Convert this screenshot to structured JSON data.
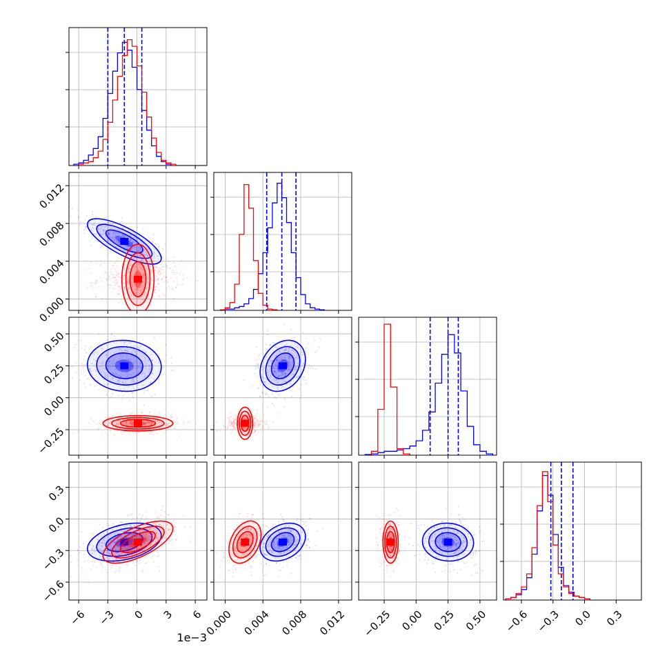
{
  "colors": {
    "blue": "#0000ff",
    "red": "#ff0000",
    "grid": "#b0b0b0",
    "axes": "#000000"
  },
  "figure": {
    "offset_text": "1e−3"
  },
  "chart_data": {
    "type": "corner",
    "grid": true,
    "n_params": 4,
    "params": [
      {
        "ticks": [
          -6,
          -3,
          0,
          3,
          6
        ],
        "tick_labels": [
          "−6",
          "−3",
          "0",
          "3",
          "6"
        ],
        "range": [
          -7.0,
          7.2
        ]
      },
      {
        "ticks": [
          0.0,
          0.004,
          0.008,
          0.012
        ],
        "tick_labels": [
          "0.000",
          "0.004",
          "0.008",
          "0.012"
        ],
        "range": [
          -0.0012,
          0.0134
        ]
      },
      {
        "ticks": [
          -0.25,
          0.0,
          0.25,
          0.5
        ],
        "tick_labels": [
          "−0.25",
          "0.00",
          "0.25",
          "0.50"
        ],
        "range": [
          -0.45,
          0.63
        ]
      },
      {
        "ticks": [
          -0.6,
          -0.3,
          0.0,
          0.3
        ],
        "tick_labels": [
          "−0.6",
          "−0.3",
          "0.0",
          "0.3"
        ],
        "range": [
          -0.77,
          0.54
        ]
      }
    ],
    "series": [
      {
        "color": "#0000ff",
        "hist": [
          {
            "start": -6.5,
            "width": 0.5,
            "counts": [
              0.01,
              0.02,
              0.04,
              0.08,
              0.13,
              0.22,
              0.36,
              0.55,
              0.72,
              0.86,
              0.94,
              0.88,
              0.75,
              0.58,
              0.42,
              0.27,
              0.15,
              0.07,
              0.03,
              0.01
            ]
          },
          {
            "start": 0.0,
            "width": 0.0005,
            "counts": [
              0.01,
              0.01,
              0.02,
              0.03,
              0.05,
              0.09,
              0.16,
              0.28,
              0.44,
              0.63,
              0.82,
              0.97,
              0.86,
              0.67,
              0.44,
              0.25,
              0.12,
              0.05,
              0.02,
              0.01,
              0.005
            ]
          },
          {
            "start": -0.4,
            "width": 0.05,
            "counts": [
              0.005,
              0.01,
              0.02,
              0.03,
              0.03,
              0.04,
              0.05,
              0.07,
              0.11,
              0.19,
              0.33,
              0.55,
              0.77,
              0.92,
              0.78,
              0.49,
              0.22,
              0.08,
              0.03,
              0.01
            ]
          },
          {
            "start": -0.75,
            "width": 0.05,
            "counts": [
              0.01,
              0.02,
              0.04,
              0.08,
              0.17,
              0.35,
              0.68,
              0.95,
              0.8,
              0.5,
              0.25,
              0.11,
              0.06,
              0.03,
              0.02,
              0.01
            ]
          }
        ],
        "quantiles": [
          [
            -3.0,
            -1.3,
            0.5
          ],
          [
            0.0044,
            0.006,
            0.0075
          ],
          [
            0.11,
            0.25,
            0.33
          ],
          [
            -0.32,
            -0.22,
            -0.11
          ]
        ],
        "means": [
          -1.3,
          0.0061,
          0.25,
          -0.22
        ],
        "sigmas": [
          1.9,
          0.0012,
          0.1,
          0.09
        ],
        "covariances": [
          [
            0,
            1,
            -0.75
          ],
          [
            0,
            2,
            -0.05
          ],
          [
            0,
            3,
            0.35
          ],
          [
            1,
            2,
            0.25
          ],
          [
            1,
            3,
            0.3
          ],
          [
            2,
            3,
            -0.05
          ]
        ]
      },
      {
        "color": "#ff0000",
        "hist": [
          {
            "start": -6.5,
            "width": 0.5,
            "counts": [
              0.0,
              0.01,
              0.02,
              0.03,
              0.06,
              0.11,
              0.2,
              0.33,
              0.5,
              0.68,
              0.84,
              0.96,
              0.91,
              0.76,
              0.56,
              0.37,
              0.21,
              0.1,
              0.04,
              0.02,
              0.01,
              0.0,
              0.0,
              0.0,
              0.0,
              0.0,
              0.0
            ]
          },
          {
            "start": -0.0005,
            "width": 0.0005,
            "counts": [
              0.005,
              0.02,
              0.06,
              0.2,
              0.58,
              0.96,
              0.78,
              0.38,
              0.13,
              0.04,
              0.01,
              0.005
            ]
          },
          {
            "start": -0.35,
            "width": 0.05,
            "counts": [
              0.03,
              0.35,
              1.0,
              0.52,
              0.05,
              0.01
            ]
          },
          {
            "start": -0.75,
            "width": 0.05,
            "counts": [
              0.01,
              0.02,
              0.05,
              0.1,
              0.2,
              0.4,
              0.72,
              0.98,
              0.75,
              0.42,
              0.2,
              0.1,
              0.05,
              0.03,
              0.02,
              0.01
            ]
          }
        ],
        "means": [
          0.1,
          0.0021,
          -0.2,
          -0.22
        ],
        "sigmas": [
          1.8,
          0.00085,
          0.03,
          0.1
        ],
        "covariances": [
          [
            0,
            1,
            0.0
          ],
          [
            0,
            2,
            0.0
          ],
          [
            0,
            3,
            0.65
          ],
          [
            1,
            2,
            0.0
          ],
          [
            1,
            3,
            0.35
          ],
          [
            2,
            3,
            0.0
          ]
        ]
      }
    ]
  }
}
